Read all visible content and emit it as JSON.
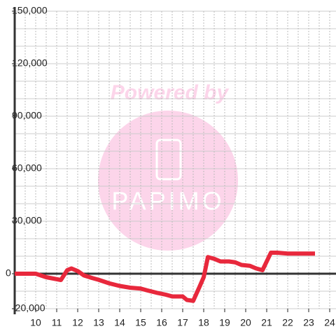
{
  "chart_data": {
    "type": "line",
    "annotations": [
      "Powered by",
      "PAPIMO"
    ],
    "x": [
      9,
      10,
      10.5,
      11.2,
      11.5,
      11.7,
      12,
      12.3,
      12.7,
      13,
      13.5,
      14,
      14.5,
      15,
      15.3,
      15.8,
      16.2,
      16.5,
      17,
      17.2,
      17.5,
      17.8,
      18,
      18.2,
      18.5,
      18.8,
      19.2,
      19.5,
      19.8,
      20.2,
      20.5,
      20.8,
      21,
      21.2,
      21.5,
      22,
      23.3
    ],
    "series": [
      {
        "color": "#e8283c",
        "values": [
          0,
          0,
          -2000,
          -3600,
          2000,
          3000,
          1500,
          -1000,
          -2500,
          -3500,
          -5500,
          -7000,
          -8000,
          -8500,
          -9500,
          -11000,
          -12000,
          -13000,
          -13000,
          -15000,
          -15500,
          -7500,
          -2000,
          9500,
          8500,
          7000,
          7000,
          6500,
          5000,
          4500,
          3000,
          2000,
          7000,
          12000,
          12000,
          11500,
          11500
        ]
      }
    ],
    "xlim": [
      9,
      24.3
    ],
    "xticks": [
      10,
      11,
      12,
      13,
      14,
      15,
      16,
      17,
      18,
      19,
      20,
      21,
      22,
      23,
      24
    ],
    "xgrid": [
      9.5,
      10,
      10.5,
      11,
      11.5,
      12,
      12.5,
      13,
      13.5,
      14,
      14.5,
      15,
      15.5,
      16,
      16.5,
      17,
      17.5,
      18,
      18.5,
      19,
      19.5,
      20,
      20.5,
      21,
      21.5,
      22,
      22.5,
      23,
      23.5,
      24
    ],
    "ylim": [
      -20000,
      150000
    ],
    "yticks": [
      {
        "value": -20000,
        "label": "-20,000"
      },
      0,
      {
        "value": 30000,
        "label": "30,000"
      },
      {
        "value": 60000,
        "label": "60,000"
      },
      {
        "value": 90000,
        "label": "90,000"
      },
      {
        "value": 120000,
        "label": "120,000"
      },
      {
        "value": 150000,
        "label": "150,000"
      }
    ],
    "ygrid": [
      -20000,
      -10000,
      10000,
      20000,
      30000,
      40000,
      50000,
      60000,
      70000,
      80000,
      90000,
      100000,
      110000,
      120000,
      130000,
      140000,
      150000
    ]
  }
}
